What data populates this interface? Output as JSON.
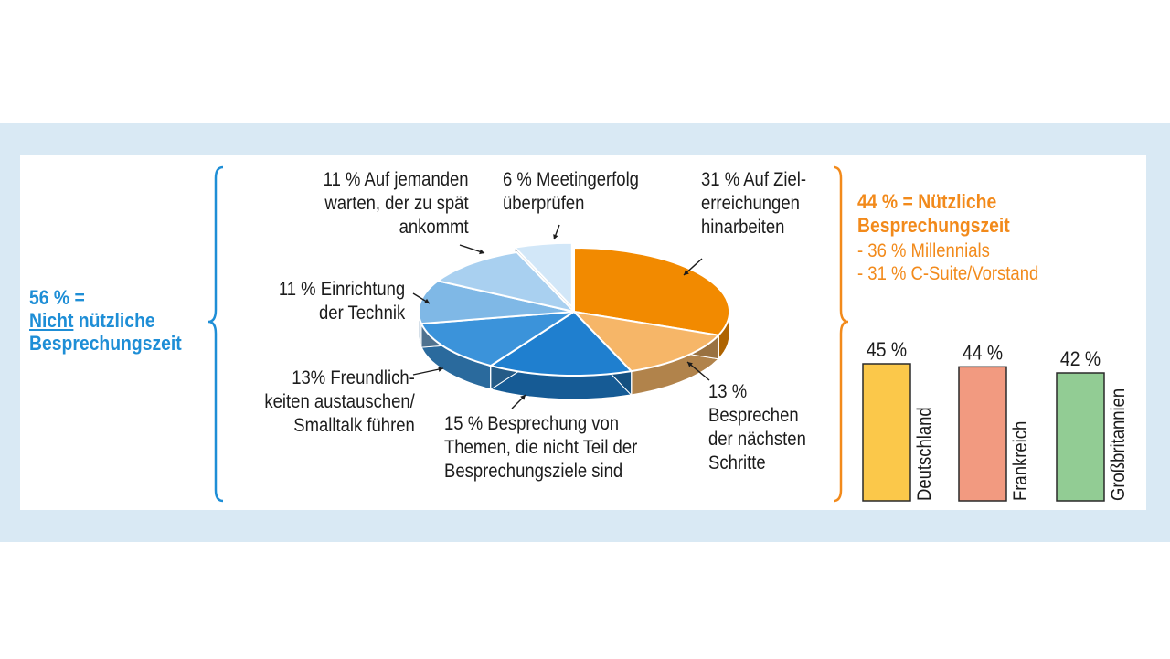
{
  "colors": {
    "band": "#d9e9f4",
    "blue": "#1e8ed6",
    "orange": "#f28a1b"
  },
  "left_summary": {
    "line1": "56 % =",
    "line2_underlined": "Nicht",
    "line2_rest": " nützliche",
    "line3": "Besprechungszeit"
  },
  "right_summary": {
    "line1": "44 % = Nützliche",
    "line2": "Besprechungszeit",
    "sub1": "- 36 % Millennials",
    "sub2": "- 31 % C-Suite/Vorstand"
  },
  "chart_data": [
    {
      "type": "pie",
      "slices": [
        {
          "value": 31,
          "label_lines": [
            "31 % Auf Ziel-",
            "erreichungen",
            "hinarbeiten"
          ],
          "color": "#f28a00"
        },
        {
          "value": 13,
          "label_lines": [
            "13 %",
            "Besprechen",
            "der nächsten",
            "Schritte"
          ],
          "color": "#f6b668"
        },
        {
          "value": 15,
          "label_lines": [
            "15 % Besprechung von",
            "Themen, die nicht Teil der",
            "Besprechungsziele sind"
          ],
          "color": "#1f7fcf"
        },
        {
          "value": 13,
          "label_lines": [
            "13% Freundlich-",
            "keiten austauschen/",
            "Smalltalk führen"
          ],
          "color": "#3b93da"
        },
        {
          "value": 11,
          "label_lines": [
            "11 % Einrichtung",
            "der Technik"
          ],
          "color": "#7fb8e6"
        },
        {
          "value": 11,
          "label_lines": [
            "11 % Auf jemanden",
            "warten, der zu spät",
            "ankommt"
          ],
          "color": "#a9d0f0"
        },
        {
          "value": 6,
          "label_lines": [
            "6 % Meetingerfolg",
            "überprüfen"
          ],
          "color": "#d2e7f8"
        }
      ]
    },
    {
      "type": "bar",
      "categories": [
        "Deutschland",
        "Frankreich",
        "Großbritannien"
      ],
      "values": [
        45,
        44,
        42
      ],
      "value_labels": [
        "45 %",
        "44 %",
        "42 %"
      ],
      "colors": [
        "#fbc84a",
        "#f29a80",
        "#92cc94"
      ]
    }
  ]
}
